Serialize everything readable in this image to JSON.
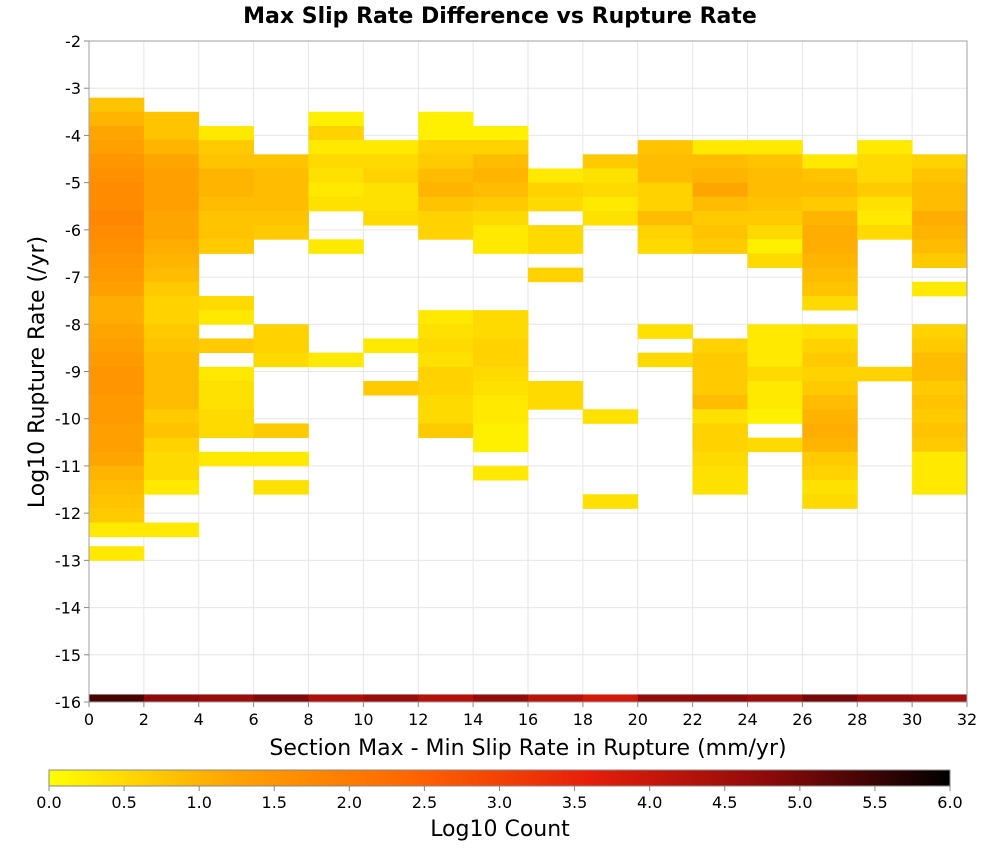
{
  "chart_data": {
    "type": "heatmap",
    "title": "Max Slip Rate Difference vs Rupture Rate",
    "xlabel": "Section Max - Min Slip Rate in Rupture (mm/yr)",
    "ylabel": "Log10 Rupture Rate (/yr)",
    "xlim": [
      0,
      32
    ],
    "ylim": [
      -16,
      -2
    ],
    "x_ticks": [
      0,
      2,
      4,
      6,
      8,
      10,
      12,
      14,
      16,
      18,
      20,
      22,
      24,
      26,
      28,
      30,
      32
    ],
    "y_ticks": [
      -16,
      -15,
      -14,
      -13,
      -12,
      -11,
      -10,
      -9,
      -8,
      -7,
      -6,
      -5,
      -4,
      -3,
      -2
    ],
    "grid": true,
    "x_bin_width": 2,
    "y_bin_height": 0.3,
    "colorbar": {
      "label": "Log10 Count",
      "min": 0.0,
      "max": 6.0,
      "ticks": [
        "0.0",
        "0.5",
        "1.0",
        "1.5",
        "2.0",
        "2.5",
        "3.0",
        "3.5",
        "4.0",
        "4.5",
        "5.0",
        "5.5",
        "6.0"
      ],
      "colormap": [
        "#ffff00",
        "#ffa500",
        "#ff6600",
        "#e61e0a",
        "#8c0a0a",
        "#000000"
      ]
    },
    "columns": [
      {
        "x0": 0,
        "cells": [
          [
            -3.35,
            0.8
          ],
          [
            -3.65,
            1.0
          ],
          [
            -3.95,
            1.2
          ],
          [
            -4.25,
            1.3
          ],
          [
            -4.55,
            1.5
          ],
          [
            -4.85,
            1.6
          ],
          [
            -5.15,
            1.7
          ],
          [
            -5.45,
            1.7
          ],
          [
            -5.75,
            1.8
          ],
          [
            -6.05,
            1.7
          ],
          [
            -6.35,
            1.6
          ],
          [
            -6.65,
            1.5
          ],
          [
            -6.95,
            1.4
          ],
          [
            -7.25,
            1.3
          ],
          [
            -7.55,
            1.1
          ],
          [
            -7.85,
            1.1
          ],
          [
            -8.15,
            1.2
          ],
          [
            -8.45,
            1.3
          ],
          [
            -8.75,
            1.4
          ],
          [
            -9.05,
            1.5
          ],
          [
            -9.35,
            1.5
          ],
          [
            -9.65,
            1.4
          ],
          [
            -9.95,
            1.4
          ],
          [
            -10.25,
            1.3
          ],
          [
            -10.55,
            1.3
          ],
          [
            -10.85,
            1.2
          ],
          [
            -11.15,
            1.0
          ],
          [
            -11.45,
            0.9
          ],
          [
            -11.75,
            0.8
          ],
          [
            -12.05,
            0.7
          ],
          [
            -12.35,
            0.3
          ],
          [
            -12.85,
            0.3
          ]
        ]
      },
      {
        "x0": 2,
        "cells": [
          [
            -3.65,
            0.8
          ],
          [
            -3.95,
            0.8
          ],
          [
            -4.25,
            1.0
          ],
          [
            -4.55,
            1.2
          ],
          [
            -4.85,
            1.3
          ],
          [
            -5.15,
            1.3
          ],
          [
            -5.45,
            1.3
          ],
          [
            -5.75,
            1.2
          ],
          [
            -6.05,
            1.2
          ],
          [
            -6.35,
            1.1
          ],
          [
            -6.65,
            1.0
          ],
          [
            -6.95,
            0.9
          ],
          [
            -7.25,
            0.7
          ],
          [
            -7.55,
            0.6
          ],
          [
            -7.85,
            0.6
          ],
          [
            -8.15,
            0.7
          ],
          [
            -8.45,
            0.8
          ],
          [
            -8.75,
            0.9
          ],
          [
            -9.05,
            0.9
          ],
          [
            -9.35,
            0.9
          ],
          [
            -9.65,
            0.9
          ],
          [
            -9.95,
            0.7
          ],
          [
            -10.25,
            0.8
          ],
          [
            -10.55,
            0.6
          ],
          [
            -10.85,
            0.5
          ],
          [
            -11.15,
            0.5
          ],
          [
            -11.45,
            0.3
          ],
          [
            -12.35,
            0.3
          ]
        ]
      },
      {
        "x0": 4,
        "cells": [
          [
            -3.95,
            0.3
          ],
          [
            -4.25,
            0.7
          ],
          [
            -4.55,
            0.8
          ],
          [
            -4.85,
            1.0
          ],
          [
            -5.15,
            1.0
          ],
          [
            -5.45,
            0.9
          ],
          [
            -5.75,
            0.8
          ],
          [
            -6.05,
            0.8
          ],
          [
            -6.35,
            0.7
          ],
          [
            -7.55,
            0.5
          ],
          [
            -7.85,
            0.3
          ],
          [
            -8.45,
            0.7
          ],
          [
            -9.05,
            0.3
          ],
          [
            -9.35,
            0.4
          ],
          [
            -9.65,
            0.4
          ],
          [
            -9.95,
            0.5
          ],
          [
            -10.25,
            0.5
          ],
          [
            -10.85,
            0.3
          ]
        ]
      },
      {
        "x0": 6,
        "cells": [
          [
            -4.55,
            0.8
          ],
          [
            -4.85,
            0.9
          ],
          [
            -5.15,
            0.9
          ],
          [
            -5.45,
            0.9
          ],
          [
            -5.75,
            0.8
          ],
          [
            -6.05,
            0.7
          ],
          [
            -8.15,
            0.6
          ],
          [
            -8.45,
            0.6
          ],
          [
            -8.75,
            0.5
          ],
          [
            -10.25,
            0.7
          ],
          [
            -10.85,
            0.3
          ],
          [
            -11.45,
            0.4
          ]
        ]
      },
      {
        "x0": 8,
        "cells": [
          [
            -3.65,
            0.2
          ],
          [
            -3.95,
            0.6
          ],
          [
            -4.25,
            0.3
          ],
          [
            -4.55,
            0.5
          ],
          [
            -4.85,
            0.4
          ],
          [
            -5.15,
            0.3
          ],
          [
            -5.45,
            0.4
          ],
          [
            -6.35,
            0.3
          ],
          [
            -8.75,
            0.3
          ]
        ]
      },
      {
        "x0": 10,
        "cells": [
          [
            -4.25,
            0.3
          ],
          [
            -4.55,
            0.5
          ],
          [
            -4.85,
            0.6
          ],
          [
            -5.15,
            0.4
          ],
          [
            -5.45,
            0.4
          ],
          [
            -5.75,
            0.5
          ],
          [
            -8.45,
            0.3
          ],
          [
            -9.35,
            0.7
          ]
        ]
      },
      {
        "x0": 12,
        "cells": [
          [
            -3.65,
            0.2
          ],
          [
            -3.95,
            0.2
          ],
          [
            -4.25,
            0.6
          ],
          [
            -4.55,
            0.7
          ],
          [
            -4.85,
            0.9
          ],
          [
            -5.15,
            1.0
          ],
          [
            -5.45,
            0.8
          ],
          [
            -5.75,
            0.6
          ],
          [
            -6.05,
            0.6
          ],
          [
            -7.85,
            0.3
          ],
          [
            -8.15,
            0.4
          ],
          [
            -8.45,
            0.5
          ],
          [
            -8.75,
            0.4
          ],
          [
            -9.05,
            0.6
          ],
          [
            -9.35,
            0.6
          ],
          [
            -9.65,
            0.5
          ],
          [
            -9.95,
            0.5
          ],
          [
            -10.25,
            0.7
          ]
        ]
      },
      {
        "x0": 14,
        "cells": [
          [
            -3.95,
            0.2
          ],
          [
            -4.25,
            0.6
          ],
          [
            -4.55,
            0.9
          ],
          [
            -4.85,
            1.0
          ],
          [
            -5.15,
            0.9
          ],
          [
            -5.45,
            0.7
          ],
          [
            -5.75,
            0.5
          ],
          [
            -6.05,
            0.3
          ],
          [
            -6.35,
            0.3
          ],
          [
            -7.85,
            0.5
          ],
          [
            -8.15,
            0.5
          ],
          [
            -8.45,
            0.6
          ],
          [
            -8.75,
            0.6
          ],
          [
            -9.05,
            0.5
          ],
          [
            -9.35,
            0.4
          ],
          [
            -9.65,
            0.3
          ],
          [
            -9.95,
            0.3
          ],
          [
            -10.25,
            0.2
          ],
          [
            -10.55,
            0.2
          ],
          [
            -11.15,
            0.3
          ]
        ]
      },
      {
        "x0": 16,
        "cells": [
          [
            -4.85,
            0.3
          ],
          [
            -5.15,
            0.6
          ],
          [
            -5.45,
            0.5
          ],
          [
            -6.05,
            0.5
          ],
          [
            -6.35,
            0.5
          ],
          [
            -6.95,
            0.6
          ],
          [
            -9.35,
            0.5
          ],
          [
            -9.65,
            0.5
          ]
        ]
      },
      {
        "x0": 18,
        "cells": [
          [
            -4.55,
            0.7
          ],
          [
            -4.85,
            0.4
          ],
          [
            -5.15,
            0.5
          ],
          [
            -5.45,
            0.3
          ],
          [
            -5.75,
            0.4
          ],
          [
            -9.95,
            0.4
          ],
          [
            -11.75,
            0.4
          ]
        ]
      },
      {
        "x0": 20,
        "cells": [
          [
            -4.25,
            0.8
          ],
          [
            -4.55,
            0.9
          ],
          [
            -4.85,
            0.9
          ],
          [
            -5.15,
            0.6
          ],
          [
            -5.45,
            0.6
          ],
          [
            -5.75,
            0.9
          ],
          [
            -6.05,
            0.6
          ],
          [
            -6.35,
            0.5
          ],
          [
            -8.15,
            0.4
          ],
          [
            -8.75,
            0.5
          ]
        ]
      },
      {
        "x0": 22,
        "cells": [
          [
            -4.25,
            0.3
          ],
          [
            -4.55,
            0.9
          ],
          [
            -4.85,
            1.0
          ],
          [
            -5.15,
            1.2
          ],
          [
            -5.45,
            0.9
          ],
          [
            -5.75,
            0.7
          ],
          [
            -6.05,
            0.8
          ],
          [
            -6.35,
            0.7
          ],
          [
            -8.45,
            0.6
          ],
          [
            -8.75,
            0.7
          ],
          [
            -9.05,
            0.7
          ],
          [
            -9.35,
            0.7
          ],
          [
            -9.65,
            0.9
          ],
          [
            -9.95,
            0.4
          ],
          [
            -10.25,
            0.6
          ],
          [
            -10.55,
            0.6
          ],
          [
            -10.85,
            0.5
          ],
          [
            -11.15,
            0.4
          ],
          [
            -11.45,
            0.4
          ]
        ]
      },
      {
        "x0": 24,
        "cells": [
          [
            -4.25,
            0.3
          ],
          [
            -4.55,
            0.8
          ],
          [
            -4.85,
            0.9
          ],
          [
            -5.15,
            0.9
          ],
          [
            -5.45,
            0.8
          ],
          [
            -5.75,
            0.7
          ],
          [
            -6.05,
            0.5
          ],
          [
            -6.35,
            0.2
          ],
          [
            -6.65,
            0.5
          ],
          [
            -8.15,
            0.3
          ],
          [
            -8.45,
            0.3
          ],
          [
            -8.75,
            0.3
          ],
          [
            -9.05,
            0.5
          ],
          [
            -9.35,
            0.3
          ],
          [
            -9.65,
            0.3
          ],
          [
            -9.95,
            0.2
          ],
          [
            -10.55,
            0.5
          ]
        ]
      },
      {
        "x0": 26,
        "cells": [
          [
            -4.55,
            0.3
          ],
          [
            -4.85,
            0.8
          ],
          [
            -5.15,
            0.9
          ],
          [
            -5.45,
            0.7
          ],
          [
            -5.75,
            1.0
          ],
          [
            -6.05,
            1.1
          ],
          [
            -6.35,
            1.1
          ],
          [
            -6.65,
            1.0
          ],
          [
            -6.95,
            0.9
          ],
          [
            -7.25,
            0.8
          ],
          [
            -7.55,
            0.5
          ],
          [
            -8.15,
            0.4
          ],
          [
            -8.45,
            0.6
          ],
          [
            -8.75,
            0.7
          ],
          [
            -9.05,
            0.6
          ],
          [
            -9.35,
            0.7
          ],
          [
            -9.65,
            0.9
          ],
          [
            -9.95,
            1.0
          ],
          [
            -10.25,
            1.1
          ],
          [
            -10.55,
            1.0
          ],
          [
            -10.85,
            0.7
          ],
          [
            -11.15,
            0.6
          ],
          [
            -11.45,
            0.4
          ],
          [
            -11.75,
            0.5
          ]
        ]
      },
      {
        "x0": 28,
        "cells": [
          [
            -4.25,
            0.3
          ],
          [
            -4.55,
            0.5
          ],
          [
            -4.85,
            0.5
          ],
          [
            -5.15,
            0.7
          ],
          [
            -5.45,
            0.4
          ],
          [
            -5.75,
            0.3
          ],
          [
            -6.05,
            0.5
          ],
          [
            -9.05,
            0.6
          ]
        ]
      },
      {
        "x0": 30,
        "cells": [
          [
            -4.55,
            0.6
          ],
          [
            -4.85,
            0.8
          ],
          [
            -5.15,
            0.9
          ],
          [
            -5.45,
            0.9
          ],
          [
            -5.75,
            1.1
          ],
          [
            -6.05,
            1.0
          ],
          [
            -6.35,
            0.9
          ],
          [
            -6.65,
            0.7
          ],
          [
            -7.25,
            0.3
          ],
          [
            -8.15,
            0.6
          ],
          [
            -8.45,
            0.7
          ],
          [
            -8.75,
            0.9
          ],
          [
            -9.05,
            0.9
          ],
          [
            -9.35,
            0.7
          ],
          [
            -9.65,
            0.8
          ],
          [
            -9.95,
            0.7
          ],
          [
            -10.25,
            0.8
          ],
          [
            -10.55,
            0.7
          ],
          [
            -10.85,
            0.3
          ],
          [
            -11.15,
            0.3
          ],
          [
            -11.45,
            0.3
          ]
        ]
      }
    ],
    "bottom_row": {
      "y": -15.92,
      "values": [
        5.4,
        4.8,
        4.6,
        4.9,
        4.4,
        4.6,
        4.3,
        4.7,
        4.2,
        3.9,
        4.7,
        4.8,
        4.6,
        5.0,
        4.6,
        4.5
      ]
    }
  }
}
